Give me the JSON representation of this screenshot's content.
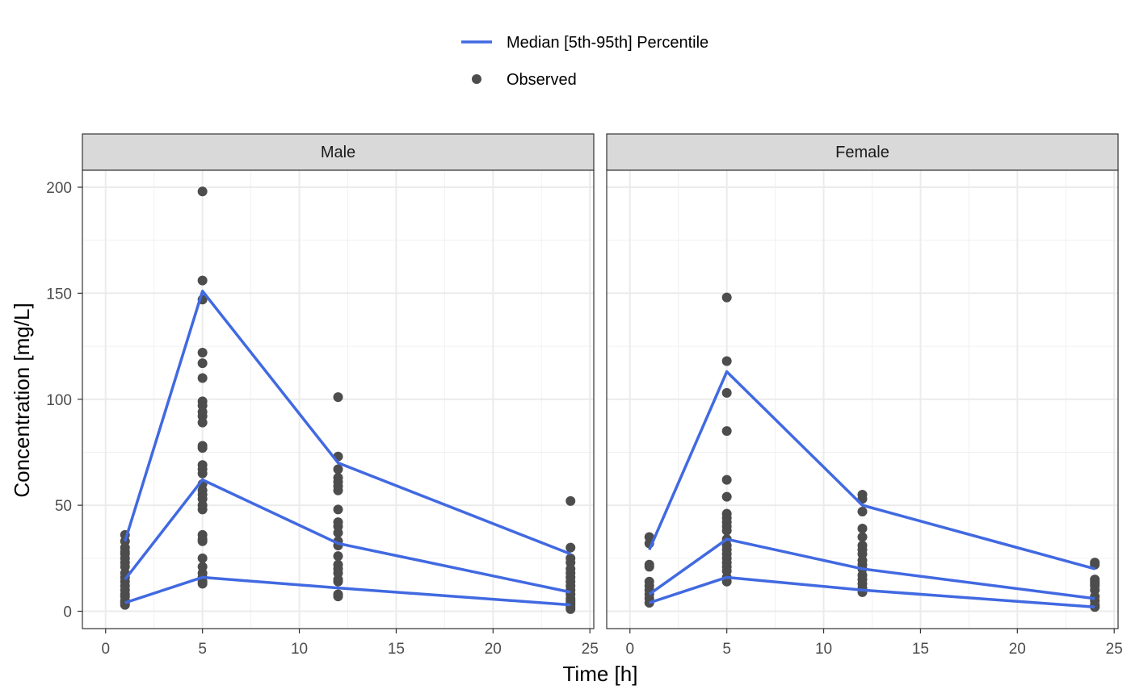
{
  "chart_data": {
    "type": "line",
    "xlabel": "Time [h]",
    "ylabel": "Concentration [mg/L]",
    "xlim": [
      0,
      25
    ],
    "ylim": [
      0,
      200
    ],
    "x_ticks": [
      0,
      5,
      10,
      15,
      20,
      25
    ],
    "y_ticks": [
      0,
      50,
      100,
      150,
      200
    ],
    "grid": true,
    "legend_position": "top",
    "legend": [
      {
        "label": "Median [5th-95th] Percentile",
        "kind": "line",
        "color": "#4169E1"
      },
      {
        "label": "Observed",
        "kind": "point",
        "color": "#4D4D4D"
      }
    ],
    "facets": [
      {
        "label": "Male",
        "percentile_lines": [
          {
            "x": [
              1,
              5,
              12,
              24
            ],
            "y": [
              33,
              151,
              70,
              27
            ]
          },
          {
            "x": [
              1,
              5,
              12,
              24
            ],
            "y": [
              15,
              62,
              32,
              9
            ]
          },
          {
            "x": [
              1,
              5,
              12,
              24
            ],
            "y": [
              4,
              16,
              11,
              3
            ]
          }
        ],
        "observed": [
          {
            "x": 1,
            "y": [
              36,
              33,
              30,
              28,
              27,
              25,
              23,
              21,
              18,
              16,
              14,
              12,
              10,
              8,
              7,
              5,
              4,
              3
            ]
          },
          {
            "x": 5,
            "y": [
              198,
              156,
              147,
              122,
              117,
              110,
              99,
              97,
              94,
              92,
              89,
              78,
              77,
              69,
              67,
              65,
              60,
              57,
              55,
              53,
              50,
              48,
              36,
              34,
              33,
              25,
              21,
              18,
              16,
              14,
              13
            ]
          },
          {
            "x": 12,
            "y": [
              101,
              73,
              67,
              63,
              61,
              59,
              57,
              48,
              42,
              40,
              37,
              33,
              31,
              26,
              22,
              20,
              18,
              15,
              14,
              8,
              7
            ]
          },
          {
            "x": 24,
            "y": [
              52,
              30,
              25,
              23,
              20,
              18,
              16,
              14,
              12,
              10,
              8,
              6,
              5,
              4,
              3,
              2,
              1
            ]
          }
        ]
      },
      {
        "label": "Female",
        "percentile_lines": [
          {
            "x": [
              1,
              5,
              12,
              24
            ],
            "y": [
              29,
              113,
              50,
              20
            ]
          },
          {
            "x": [
              1,
              5,
              12,
              24
            ],
            "y": [
              8,
              34,
              20,
              6
            ]
          },
          {
            "x": [
              1,
              5,
              12,
              24
            ],
            "y": [
              4,
              16,
              10,
              2
            ]
          }
        ],
        "observed": [
          {
            "x": 1,
            "y": [
              35,
              32,
              22,
              21,
              14,
              12,
              10,
              8,
              6,
              4
            ]
          },
          {
            "x": 5,
            "y": [
              148,
              118,
              103,
              85,
              62,
              54,
              46,
              44,
              42,
              40,
              38,
              34,
              31,
              29,
              27,
              25,
              23,
              21,
              19,
              16,
              14
            ]
          },
          {
            "x": 12,
            "y": [
              55,
              53,
              47,
              39,
              35,
              31,
              29,
              27,
              24,
              22,
              20,
              17,
              15,
              13,
              11,
              9
            ]
          },
          {
            "x": 24,
            "y": [
              23,
              22,
              15,
              14,
              13,
              12,
              10,
              7,
              5,
              3,
              2
            ]
          }
        ]
      }
    ]
  }
}
